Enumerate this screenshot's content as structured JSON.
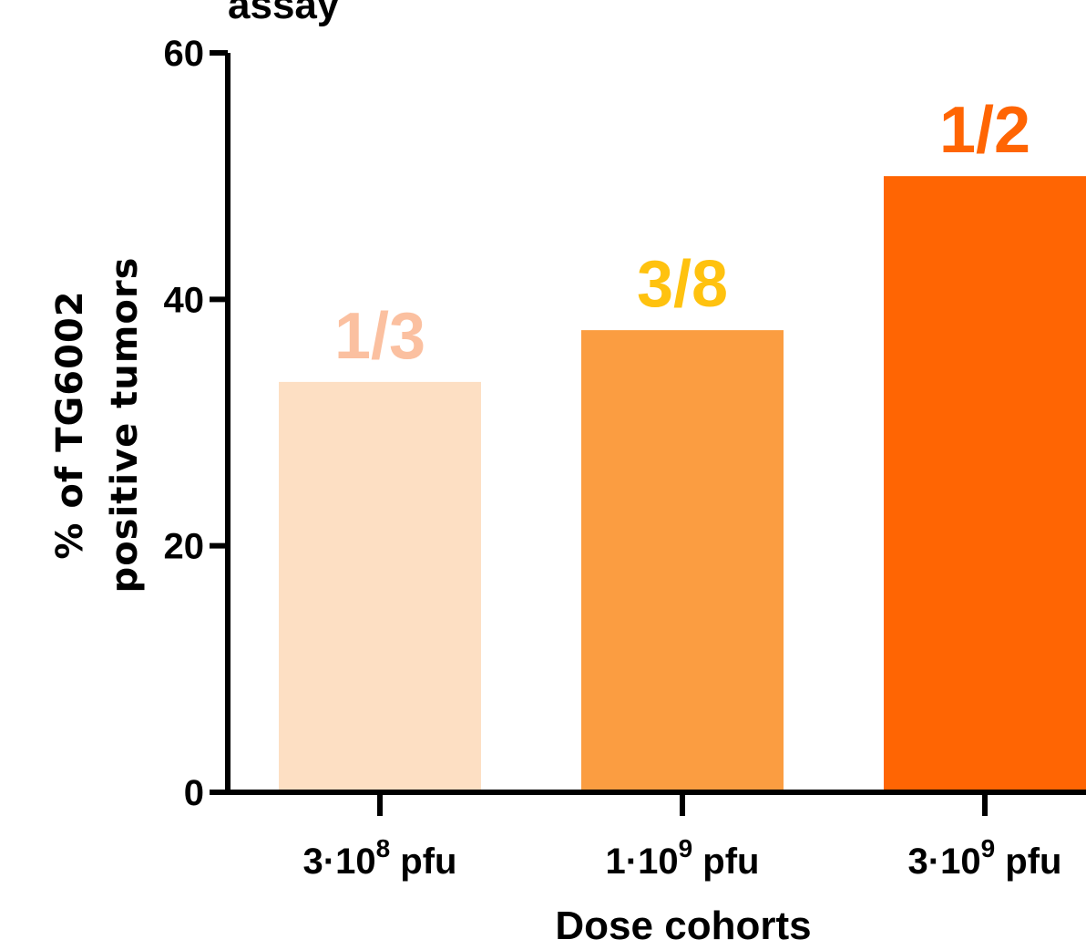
{
  "title_fragment": "assay",
  "chart_data": {
    "type": "bar",
    "categories": [
      {
        "coef": "3·10",
        "exp": "8",
        "unit": " pfu"
      },
      {
        "coef": "1·10",
        "exp": "9",
        "unit": " pfu"
      },
      {
        "coef": "3·10",
        "exp": "9",
        "unit": " pfu"
      }
    ],
    "values": [
      33.3,
      37.5,
      50
    ],
    "data_labels": [
      "1/3",
      "3/8",
      "1/2"
    ],
    "bar_colors": [
      "#FDDFC3",
      "#FB9D41",
      "#FF6503"
    ],
    "label_colors": [
      "#FBC0A0",
      "#FFC20F",
      "#FF6503"
    ],
    "xlabel": "Dose cohorts",
    "ylabel_lines": [
      "% of TG6002",
      "positive tumors"
    ],
    "ylim": [
      0,
      60
    ],
    "yticks": [
      "0",
      "20",
      "40",
      "60"
    ],
    "ytick_values": [
      0,
      20,
      40,
      60
    ]
  }
}
